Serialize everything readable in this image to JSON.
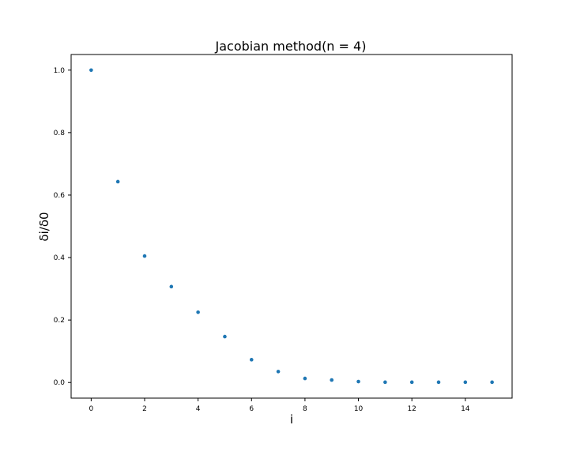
{
  "chart_data": {
    "type": "scatter",
    "title": "Jacobian method(n = 4)",
    "xlabel": "i",
    "ylabel": "δi/δ0",
    "xlim": [
      -0.75,
      15.75
    ],
    "ylim": [
      -0.05,
      1.05
    ],
    "x_ticks": [
      0,
      2,
      4,
      6,
      8,
      10,
      12,
      14
    ],
    "x_tick_labels": [
      "0",
      "2",
      "4",
      "6",
      "8",
      "10",
      "12",
      "14"
    ],
    "y_ticks": [
      0.0,
      0.2,
      0.4,
      0.6,
      0.8,
      1.0
    ],
    "y_tick_labels": [
      "0.0",
      "0.2",
      "0.4",
      "0.6",
      "0.8",
      "1.0"
    ],
    "grid": false,
    "legend": false,
    "marker_color": "#1f77b4",
    "series": [
      {
        "x": [
          0,
          1,
          2,
          3,
          4,
          5,
          6,
          7,
          8,
          9,
          10,
          11,
          12,
          13,
          14,
          15
        ],
        "y": [
          1.0,
          0.643,
          0.405,
          0.307,
          0.225,
          0.147,
          0.073,
          0.035,
          0.013,
          0.008,
          0.003,
          0.001,
          0.001,
          0.001,
          0.001,
          0.001
        ]
      }
    ]
  }
}
